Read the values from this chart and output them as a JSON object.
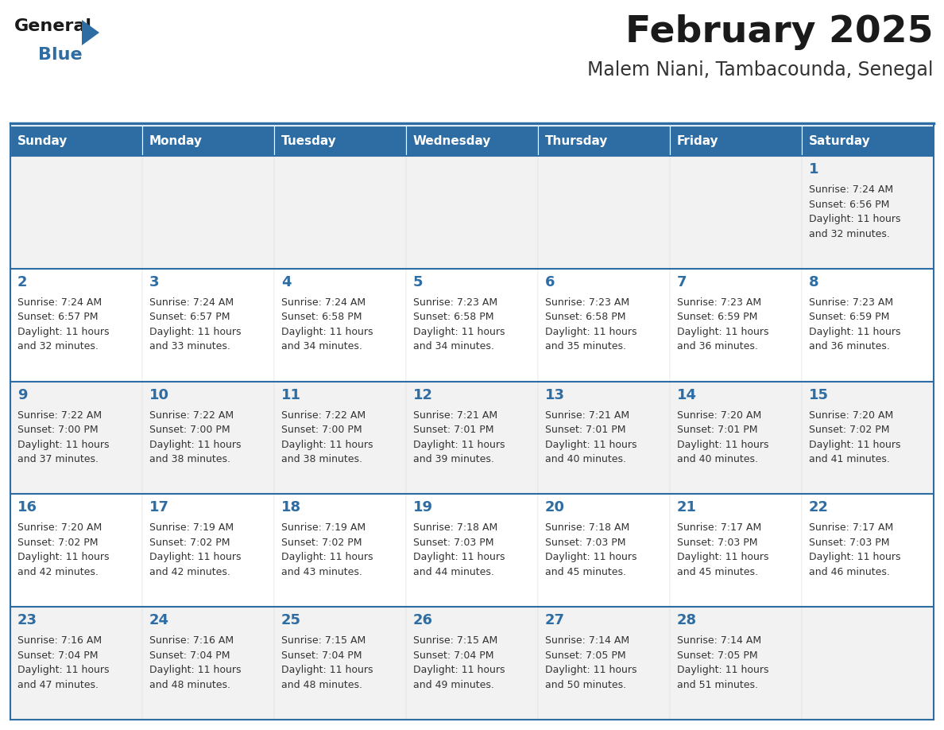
{
  "title": "February 2025",
  "subtitle": "Malem Niani, Tambacounda, Senegal",
  "days_of_week": [
    "Sunday",
    "Monday",
    "Tuesday",
    "Wednesday",
    "Thursday",
    "Friday",
    "Saturday"
  ],
  "header_bg": "#2E6DA4",
  "header_text": "#FFFFFF",
  "cell_bg_odd": "#F2F2F2",
  "cell_bg_even": "#FFFFFF",
  "day_number_color": "#2E6DA4",
  "info_text_color": "#333333",
  "border_color": "#2E6DA4",
  "logo_general_color": "#1a1a1a",
  "logo_blue_color": "#2E6DA4",
  "calendar_data": {
    "1": {
      "sunrise": "7:24 AM",
      "sunset": "6:56 PM",
      "daylight": "11 hours and 32 minutes.",
      "col": 6,
      "row": 0
    },
    "2": {
      "sunrise": "7:24 AM",
      "sunset": "6:57 PM",
      "daylight": "11 hours and 32 minutes.",
      "col": 0,
      "row": 1
    },
    "3": {
      "sunrise": "7:24 AM",
      "sunset": "6:57 PM",
      "daylight": "11 hours and 33 minutes.",
      "col": 1,
      "row": 1
    },
    "4": {
      "sunrise": "7:24 AM",
      "sunset": "6:58 PM",
      "daylight": "11 hours and 34 minutes.",
      "col": 2,
      "row": 1
    },
    "5": {
      "sunrise": "7:23 AM",
      "sunset": "6:58 PM",
      "daylight": "11 hours and 34 minutes.",
      "col": 3,
      "row": 1
    },
    "6": {
      "sunrise": "7:23 AM",
      "sunset": "6:58 PM",
      "daylight": "11 hours and 35 minutes.",
      "col": 4,
      "row": 1
    },
    "7": {
      "sunrise": "7:23 AM",
      "sunset": "6:59 PM",
      "daylight": "11 hours and 36 minutes.",
      "col": 5,
      "row": 1
    },
    "8": {
      "sunrise": "7:23 AM",
      "sunset": "6:59 PM",
      "daylight": "11 hours and 36 minutes.",
      "col": 6,
      "row": 1
    },
    "9": {
      "sunrise": "7:22 AM",
      "sunset": "7:00 PM",
      "daylight": "11 hours and 37 minutes.",
      "col": 0,
      "row": 2
    },
    "10": {
      "sunrise": "7:22 AM",
      "sunset": "7:00 PM",
      "daylight": "11 hours and 38 minutes.",
      "col": 1,
      "row": 2
    },
    "11": {
      "sunrise": "7:22 AM",
      "sunset": "7:00 PM",
      "daylight": "11 hours and 38 minutes.",
      "col": 2,
      "row": 2
    },
    "12": {
      "sunrise": "7:21 AM",
      "sunset": "7:01 PM",
      "daylight": "11 hours and 39 minutes.",
      "col": 3,
      "row": 2
    },
    "13": {
      "sunrise": "7:21 AM",
      "sunset": "7:01 PM",
      "daylight": "11 hours and 40 minutes.",
      "col": 4,
      "row": 2
    },
    "14": {
      "sunrise": "7:20 AM",
      "sunset": "7:01 PM",
      "daylight": "11 hours and 40 minutes.",
      "col": 5,
      "row": 2
    },
    "15": {
      "sunrise": "7:20 AM",
      "sunset": "7:02 PM",
      "daylight": "11 hours and 41 minutes.",
      "col": 6,
      "row": 2
    },
    "16": {
      "sunrise": "7:20 AM",
      "sunset": "7:02 PM",
      "daylight": "11 hours and 42 minutes.",
      "col": 0,
      "row": 3
    },
    "17": {
      "sunrise": "7:19 AM",
      "sunset": "7:02 PM",
      "daylight": "11 hours and 42 minutes.",
      "col": 1,
      "row": 3
    },
    "18": {
      "sunrise": "7:19 AM",
      "sunset": "7:02 PM",
      "daylight": "11 hours and 43 minutes.",
      "col": 2,
      "row": 3
    },
    "19": {
      "sunrise": "7:18 AM",
      "sunset": "7:03 PM",
      "daylight": "11 hours and 44 minutes.",
      "col": 3,
      "row": 3
    },
    "20": {
      "sunrise": "7:18 AM",
      "sunset": "7:03 PM",
      "daylight": "11 hours and 45 minutes.",
      "col": 4,
      "row": 3
    },
    "21": {
      "sunrise": "7:17 AM",
      "sunset": "7:03 PM",
      "daylight": "11 hours and 45 minutes.",
      "col": 5,
      "row": 3
    },
    "22": {
      "sunrise": "7:17 AM",
      "sunset": "7:03 PM",
      "daylight": "11 hours and 46 minutes.",
      "col": 6,
      "row": 3
    },
    "23": {
      "sunrise": "7:16 AM",
      "sunset": "7:04 PM",
      "daylight": "11 hours and 47 minutes.",
      "col": 0,
      "row": 4
    },
    "24": {
      "sunrise": "7:16 AM",
      "sunset": "7:04 PM",
      "daylight": "11 hours and 48 minutes.",
      "col": 1,
      "row": 4
    },
    "25": {
      "sunrise": "7:15 AM",
      "sunset": "7:04 PM",
      "daylight": "11 hours and 48 minutes.",
      "col": 2,
      "row": 4
    },
    "26": {
      "sunrise": "7:15 AM",
      "sunset": "7:04 PM",
      "daylight": "11 hours and 49 minutes.",
      "col": 3,
      "row": 4
    },
    "27": {
      "sunrise": "7:14 AM",
      "sunset": "7:05 PM",
      "daylight": "11 hours and 50 minutes.",
      "col": 4,
      "row": 4
    },
    "28": {
      "sunrise": "7:14 AM",
      "sunset": "7:05 PM",
      "daylight": "11 hours and 51 minutes.",
      "col": 5,
      "row": 4
    }
  },
  "num_rows": 5,
  "num_cols": 7
}
